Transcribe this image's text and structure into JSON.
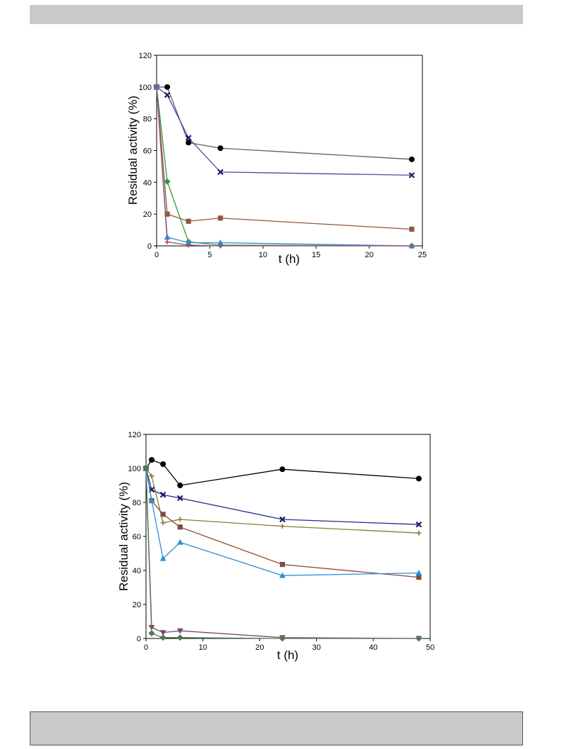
{
  "chart_data": [
    {
      "type": "line",
      "xlabel": "t (h)",
      "ylabel": "Residual activity (%)",
      "xlim": [
        0,
        25
      ],
      "ylim": [
        0,
        120
      ],
      "xticks": [
        0,
        5,
        10,
        15,
        20,
        25
      ],
      "yticks": [
        0,
        20,
        40,
        60,
        80,
        100,
        120
      ],
      "grid": false,
      "legend": "none",
      "series": [
        {
          "marker": "circle",
          "color": "#000000",
          "line_color": "#5f5f5f",
          "x": [
            0,
            1,
            3,
            6,
            24
          ],
          "y": [
            100,
            100,
            65,
            61.5,
            54.5
          ]
        },
        {
          "marker": "x",
          "color": "#1a1a6e",
          "line_color": "#4a4aa6",
          "x": [
            0,
            1,
            3,
            6,
            24
          ],
          "y": [
            100,
            95,
            68,
            46.5,
            44.5
          ]
        },
        {
          "marker": "square",
          "color": "#8b5a3c",
          "line_color": "#8b5a3c",
          "x": [
            0,
            1,
            3,
            6,
            24
          ],
          "y": [
            100,
            20,
            15.5,
            17.5,
            10.5
          ]
        },
        {
          "marker": "diamond",
          "color": "#2e9a3a",
          "line_color": "#2e9a3a",
          "x": [
            0,
            1,
            3,
            6,
            24
          ],
          "y": [
            100,
            40.5,
            2.5,
            0.5,
            0
          ]
        },
        {
          "marker": "triangle",
          "color": "#2b8fd6",
          "line_color": "#2b8fd6",
          "x": [
            0,
            1,
            3,
            6,
            24
          ],
          "y": [
            100,
            5.5,
            2,
            2,
            0
          ]
        },
        {
          "marker": "plus",
          "color": "#b04a6a",
          "line_color": "#b04a6a",
          "x": [
            0,
            1,
            3,
            6,
            24
          ],
          "y": [
            100,
            2.5,
            0.5,
            0,
            0
          ]
        }
      ]
    },
    {
      "type": "line",
      "xlabel": "t (h)",
      "ylabel": "Residual activity (%)",
      "xlim": [
        0,
        50
      ],
      "ylim": [
        0,
        120
      ],
      "xticks": [
        0,
        10,
        20,
        30,
        40,
        50
      ],
      "yticks": [
        0,
        20,
        40,
        60,
        80,
        100,
        120
      ],
      "grid": false,
      "legend": "none",
      "series": [
        {
          "marker": "circle",
          "color": "#000000",
          "line_color": "#000000",
          "x": [
            0,
            1,
            3,
            6,
            24,
            48
          ],
          "y": [
            100,
            105,
            102.5,
            90,
            99.5,
            94
          ]
        },
        {
          "marker": "x",
          "color": "#1a1a6e",
          "line_color": "#2a2a8e",
          "x": [
            0,
            1,
            3,
            6,
            24,
            48
          ],
          "y": [
            100,
            87.5,
            84.5,
            82.5,
            70,
            67
          ]
        },
        {
          "marker": "plus",
          "color": "#8c7a3a",
          "line_color": "#8c7a3a",
          "x": [
            0,
            1,
            3,
            6,
            24,
            48
          ],
          "y": [
            100,
            95.5,
            68,
            70,
            66,
            62
          ]
        },
        {
          "marker": "square",
          "color": "#7a5040",
          "line_color": "#8b4a32",
          "x": [
            0,
            1,
            3,
            6,
            24,
            48
          ],
          "y": [
            100,
            81,
            73,
            65.5,
            43.5,
            36
          ]
        },
        {
          "marker": "triangle",
          "color": "#2b8fd6",
          "line_color": "#2b8fd6",
          "x": [
            0,
            1,
            3,
            6,
            24,
            48
          ],
          "y": [
            100,
            81,
            47,
            56.5,
            37,
            38.5
          ]
        },
        {
          "marker": "triangle-down",
          "color": "#7a4a6a",
          "line_color": "#7a4a6a",
          "x": [
            0,
            1,
            3,
            6,
            24,
            48
          ],
          "y": [
            100,
            6.5,
            3.5,
            4.5,
            0.5,
            0
          ]
        },
        {
          "marker": "diamond",
          "color": "#4e7a4e",
          "line_color": "#4e7a4e",
          "x": [
            0,
            1,
            3,
            6,
            24,
            48
          ],
          "y": [
            100,
            3,
            0.5,
            0.5,
            0,
            0
          ]
        }
      ]
    }
  ]
}
